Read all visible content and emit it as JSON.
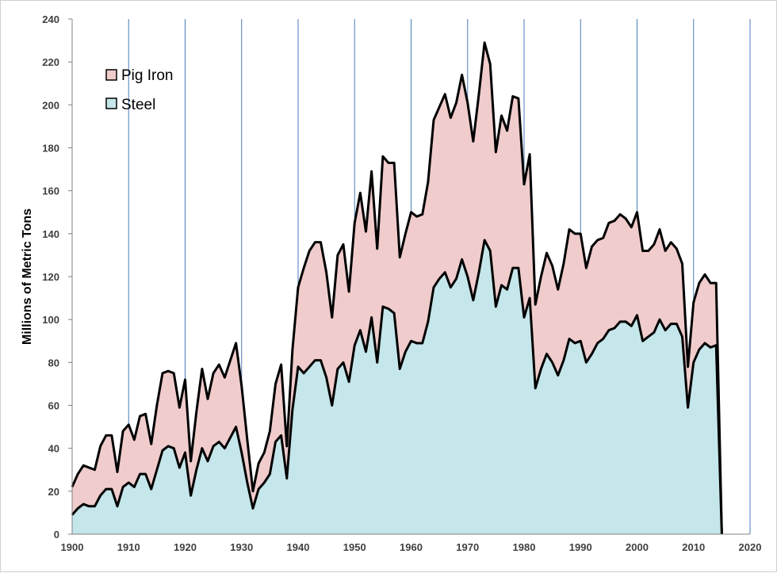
{
  "chart_data": {
    "type": "area",
    "title": "",
    "xlabel": "",
    "ylabel": "Millions of Metric Tons",
    "xlim": [
      1900,
      2020
    ],
    "ylim": [
      0,
      240
    ],
    "x_ticks": [
      1900,
      1910,
      1920,
      1930,
      1940,
      1950,
      1960,
      1970,
      1980,
      1990,
      2000,
      2010,
      2020
    ],
    "y_ticks": [
      0,
      20,
      40,
      60,
      80,
      100,
      120,
      140,
      160,
      180,
      200,
      220,
      240
    ],
    "grid": "vertical",
    "legend": "top-left",
    "x": [
      1900,
      1901,
      1902,
      1903,
      1904,
      1905,
      1906,
      1907,
      1908,
      1909,
      1910,
      1911,
      1912,
      1913,
      1914,
      1915,
      1916,
      1917,
      1918,
      1919,
      1920,
      1921,
      1922,
      1923,
      1924,
      1925,
      1926,
      1927,
      1928,
      1929,
      1930,
      1931,
      1932,
      1933,
      1934,
      1935,
      1936,
      1937,
      1938,
      1939,
      1940,
      1941,
      1942,
      1943,
      1944,
      1945,
      1946,
      1947,
      1948,
      1949,
      1950,
      1951,
      1952,
      1953,
      1954,
      1955,
      1956,
      1957,
      1958,
      1959,
      1960,
      1961,
      1962,
      1963,
      1964,
      1965,
      1966,
      1967,
      1968,
      1969,
      1970,
      1971,
      1972,
      1973,
      1974,
      1975,
      1976,
      1977,
      1978,
      1979,
      1980,
      1981,
      1982,
      1983,
      1984,
      1985,
      1986,
      1987,
      1988,
      1989,
      1990,
      1991,
      1992,
      1993,
      1994,
      1995,
      1996,
      1997,
      1998,
      1999,
      2000,
      2001,
      2002,
      2003,
      2004,
      2005,
      2006,
      2007,
      2008,
      2009,
      2010,
      2011,
      2012,
      2013,
      2014,
      2015
    ],
    "series": [
      {
        "name": "Steel",
        "color": "#c5e6ea",
        "values": [
          9,
          12,
          14,
          13,
          13,
          18,
          21,
          21,
          13,
          22,
          24,
          22,
          28,
          28,
          21,
          30,
          39,
          41,
          40,
          31,
          38,
          18,
          30,
          40,
          34,
          41,
          43,
          40,
          45,
          50,
          38,
          24,
          12,
          21,
          24,
          28,
          43,
          46,
          26,
          58,
          78,
          75,
          78,
          81,
          81,
          73,
          60,
          77,
          80,
          71,
          88,
          95,
          85,
          101,
          80,
          106,
          105,
          103,
          77,
          85,
          90,
          89,
          89,
          99,
          115,
          119,
          122,
          115,
          119,
          128,
          120,
          109,
          122,
          137,
          132,
          106,
          116,
          114,
          124,
          124,
          101,
          110,
          68,
          77,
          84,
          80,
          74,
          81,
          91,
          89,
          90,
          80,
          84,
          89,
          91,
          95,
          96,
          99,
          99,
          97,
          102,
          90,
          92,
          94,
          100,
          95,
          98,
          98,
          92,
          59,
          80,
          86,
          89,
          87,
          88,
          0
        ]
      },
      {
        "name": "Pig Iron",
        "color": "#f0cccc",
        "values": [
          22,
          28,
          32,
          31,
          30,
          41,
          46,
          46,
          29,
          48,
          51,
          44,
          55,
          56,
          42,
          60,
          75,
          76,
          75,
          59,
          72,
          34,
          57,
          77,
          63,
          75,
          79,
          73,
          81,
          89,
          69,
          44,
          20,
          33,
          38,
          48,
          70,
          79,
          41,
          86,
          115,
          124,
          132,
          136,
          136,
          122,
          101,
          130,
          135,
          113,
          145,
          159,
          141,
          169,
          133,
          176,
          173,
          173,
          129,
          140,
          150,
          148,
          149,
          164,
          193,
          199,
          205,
          194,
          201,
          214,
          201,
          183,
          205,
          229,
          219,
          178,
          195,
          188,
          204,
          203,
          163,
          177,
          107,
          120,
          131,
          125,
          114,
          126,
          142,
          140,
          140,
          124,
          134,
          137,
          138,
          145,
          146,
          149,
          147,
          143,
          150,
          132,
          132,
          135,
          142,
          132,
          136,
          133,
          126,
          78,
          108,
          117,
          121,
          117,
          117,
          0
        ]
      }
    ]
  }
}
